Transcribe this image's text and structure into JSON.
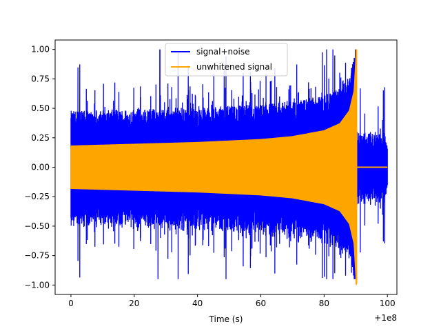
{
  "chart_data": {
    "type": "line",
    "title": "",
    "xlabel": "Time (s)",
    "ylabel": "",
    "x_offset_label": "+1e8",
    "xlim": [
      -5,
      103
    ],
    "ylim": [
      -1.08,
      1.08
    ],
    "x_ticks": [
      0,
      20,
      40,
      60,
      80,
      100
    ],
    "x_tick_labels": [
      "0",
      "20",
      "40",
      "60",
      "80",
      "100"
    ],
    "y_ticks": [
      -1.0,
      -0.75,
      -0.5,
      -0.25,
      0.0,
      0.25,
      0.5,
      0.75,
      1.0
    ],
    "y_tick_labels": [
      "−1.00",
      "−0.75",
      "−0.50",
      "−0.25",
      "0.00",
      "0.25",
      "0.50",
      "0.75",
      "1.00"
    ],
    "grid": false,
    "legend_position": "top-center",
    "series": [
      {
        "name": "signal+noise",
        "color": "#0000ff",
        "x_range": [
          0,
          100
        ],
        "typical_abs_max": 0.45,
        "peak_max": 1.0,
        "peak_min": -0.95
      },
      {
        "name": "unwhitened signal",
        "color": "#ffa500",
        "x_range": [
          0,
          100
        ],
        "envelope": [
          {
            "x": 0,
            "y": 0.18
          },
          {
            "x": 20,
            "y": 0.195
          },
          {
            "x": 40,
            "y": 0.21
          },
          {
            "x": 60,
            "y": 0.235
          },
          {
            "x": 70,
            "y": 0.26
          },
          {
            "x": 80,
            "y": 0.31
          },
          {
            "x": 85,
            "y": 0.37
          },
          {
            "x": 88,
            "y": 0.48
          },
          {
            "x": 89.5,
            "y": 0.65
          },
          {
            "x": 90.2,
            "y": 1.0
          }
        ],
        "merger_x": 90.2,
        "post_merger_abs_max": 0.01
      }
    ]
  }
}
